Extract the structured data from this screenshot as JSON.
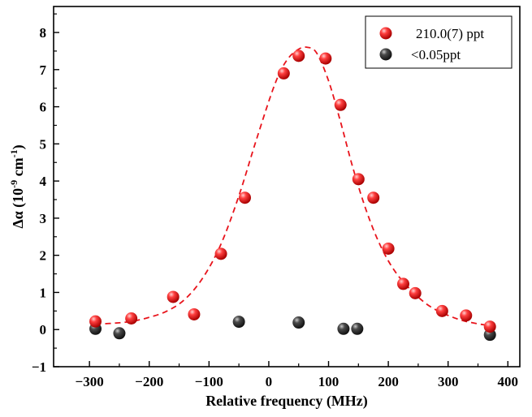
{
  "chart_data": {
    "type": "scatter",
    "title": "",
    "xlabel": "Relative frequency (MHz)",
    "ylabel_main": "Δα (10",
    "ylabel_exp": "-9",
    "ylabel_unit": " cm",
    "ylabel_unit_exp": "-1",
    "ylabel_close": ")",
    "xlim": [
      -360,
      420
    ],
    "ylim": [
      -1,
      8.7
    ],
    "xticks": [
      -300,
      -200,
      -100,
      0,
      100,
      200,
      300,
      400
    ],
    "xtick_labels": [
      "−300",
      "−200",
      "−100",
      "0",
      "100",
      "200",
      "300",
      "400"
    ],
    "yticks": [
      -1,
      0,
      1,
      2,
      3,
      4,
      5,
      6,
      7,
      8
    ],
    "ytick_labels": [
      "−1",
      "0",
      "1",
      "2",
      "3",
      "4",
      "5",
      "6",
      "7",
      "8"
    ],
    "legend_position": "top-right",
    "series": [
      {
        "name": "210.0(7) ppt",
        "color": "#ff2a2a",
        "points": [
          [
            -290,
            0.22
          ],
          [
            -230,
            0.3
          ],
          [
            -160,
            0.88
          ],
          [
            -125,
            0.41
          ],
          [
            -80,
            2.04
          ],
          [
            -40,
            3.55
          ],
          [
            25,
            6.9
          ],
          [
            50,
            7.37
          ],
          [
            95,
            7.3
          ],
          [
            120,
            6.05
          ],
          [
            150,
            4.05
          ],
          [
            175,
            3.55
          ],
          [
            200,
            2.18
          ],
          [
            225,
            1.23
          ],
          [
            245,
            0.98
          ],
          [
            290,
            0.5
          ],
          [
            330,
            0.38
          ],
          [
            370,
            0.08
          ]
        ]
      },
      {
        "name": "<0.05ppt",
        "color": "#3a3a3a",
        "points": [
          [
            -290,
            0.02
          ],
          [
            -250,
            -0.1
          ],
          [
            -50,
            0.21
          ],
          [
            50,
            0.19
          ],
          [
            125,
            0.02
          ],
          [
            148,
            0.02
          ],
          [
            370,
            -0.14
          ]
        ]
      }
    ],
    "fit_curve": {
      "style": "dashed",
      "color": "#e8141c",
      "x": [
        -290,
        -260,
        -230,
        -200,
        -170,
        -140,
        -110,
        -80,
        -50,
        -20,
        10,
        30,
        50,
        65,
        80,
        100,
        120,
        140,
        160,
        180,
        200,
        220,
        245,
        270,
        300,
        330,
        370
      ],
      "y": [
        0.15,
        0.17,
        0.22,
        0.33,
        0.5,
        0.82,
        1.4,
        2.3,
        3.6,
        5.15,
        6.6,
        7.25,
        7.55,
        7.6,
        7.45,
        6.7,
        5.6,
        4.4,
        3.35,
        2.5,
        1.85,
        1.38,
        0.95,
        0.62,
        0.38,
        0.22,
        0.1
      ]
    }
  }
}
